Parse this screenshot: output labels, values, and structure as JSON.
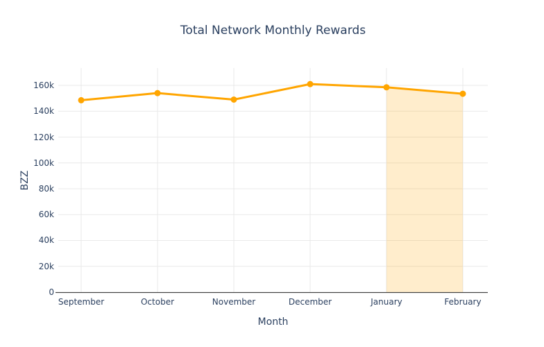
{
  "chart_data": {
    "type": "line",
    "title": "Total Network Monthly Rewards",
    "xlabel": "Month",
    "ylabel": "BZZ",
    "categories": [
      "September",
      "October",
      "November",
      "December",
      "January",
      "February"
    ],
    "series": [
      {
        "name": "Total Network Monthly Rewards",
        "values": [
          148500,
          154000,
          149000,
          161000,
          158500,
          153500
        ]
      }
    ],
    "ytick_labels": [
      "0",
      "20k",
      "40k",
      "60k",
      "80k",
      "100k",
      "120k",
      "140k",
      "160k"
    ],
    "ytick_values": [
      0,
      20000,
      40000,
      60000,
      80000,
      100000,
      120000,
      140000,
      160000
    ],
    "ylim": [
      0,
      172000
    ],
    "grid": true,
    "legend": "none",
    "highlight_region": {
      "from_category": "January",
      "to_category": "February",
      "fill_to_zero": true
    },
    "colors": {
      "line": "#ffa500",
      "marker": "#ffa500",
      "region_fill": "rgba(255,165,0,0.2)",
      "grid": "#e9e9e9",
      "axis_line": "#444444",
      "text": "#2a3f5f",
      "background": "#ffffff"
    }
  }
}
